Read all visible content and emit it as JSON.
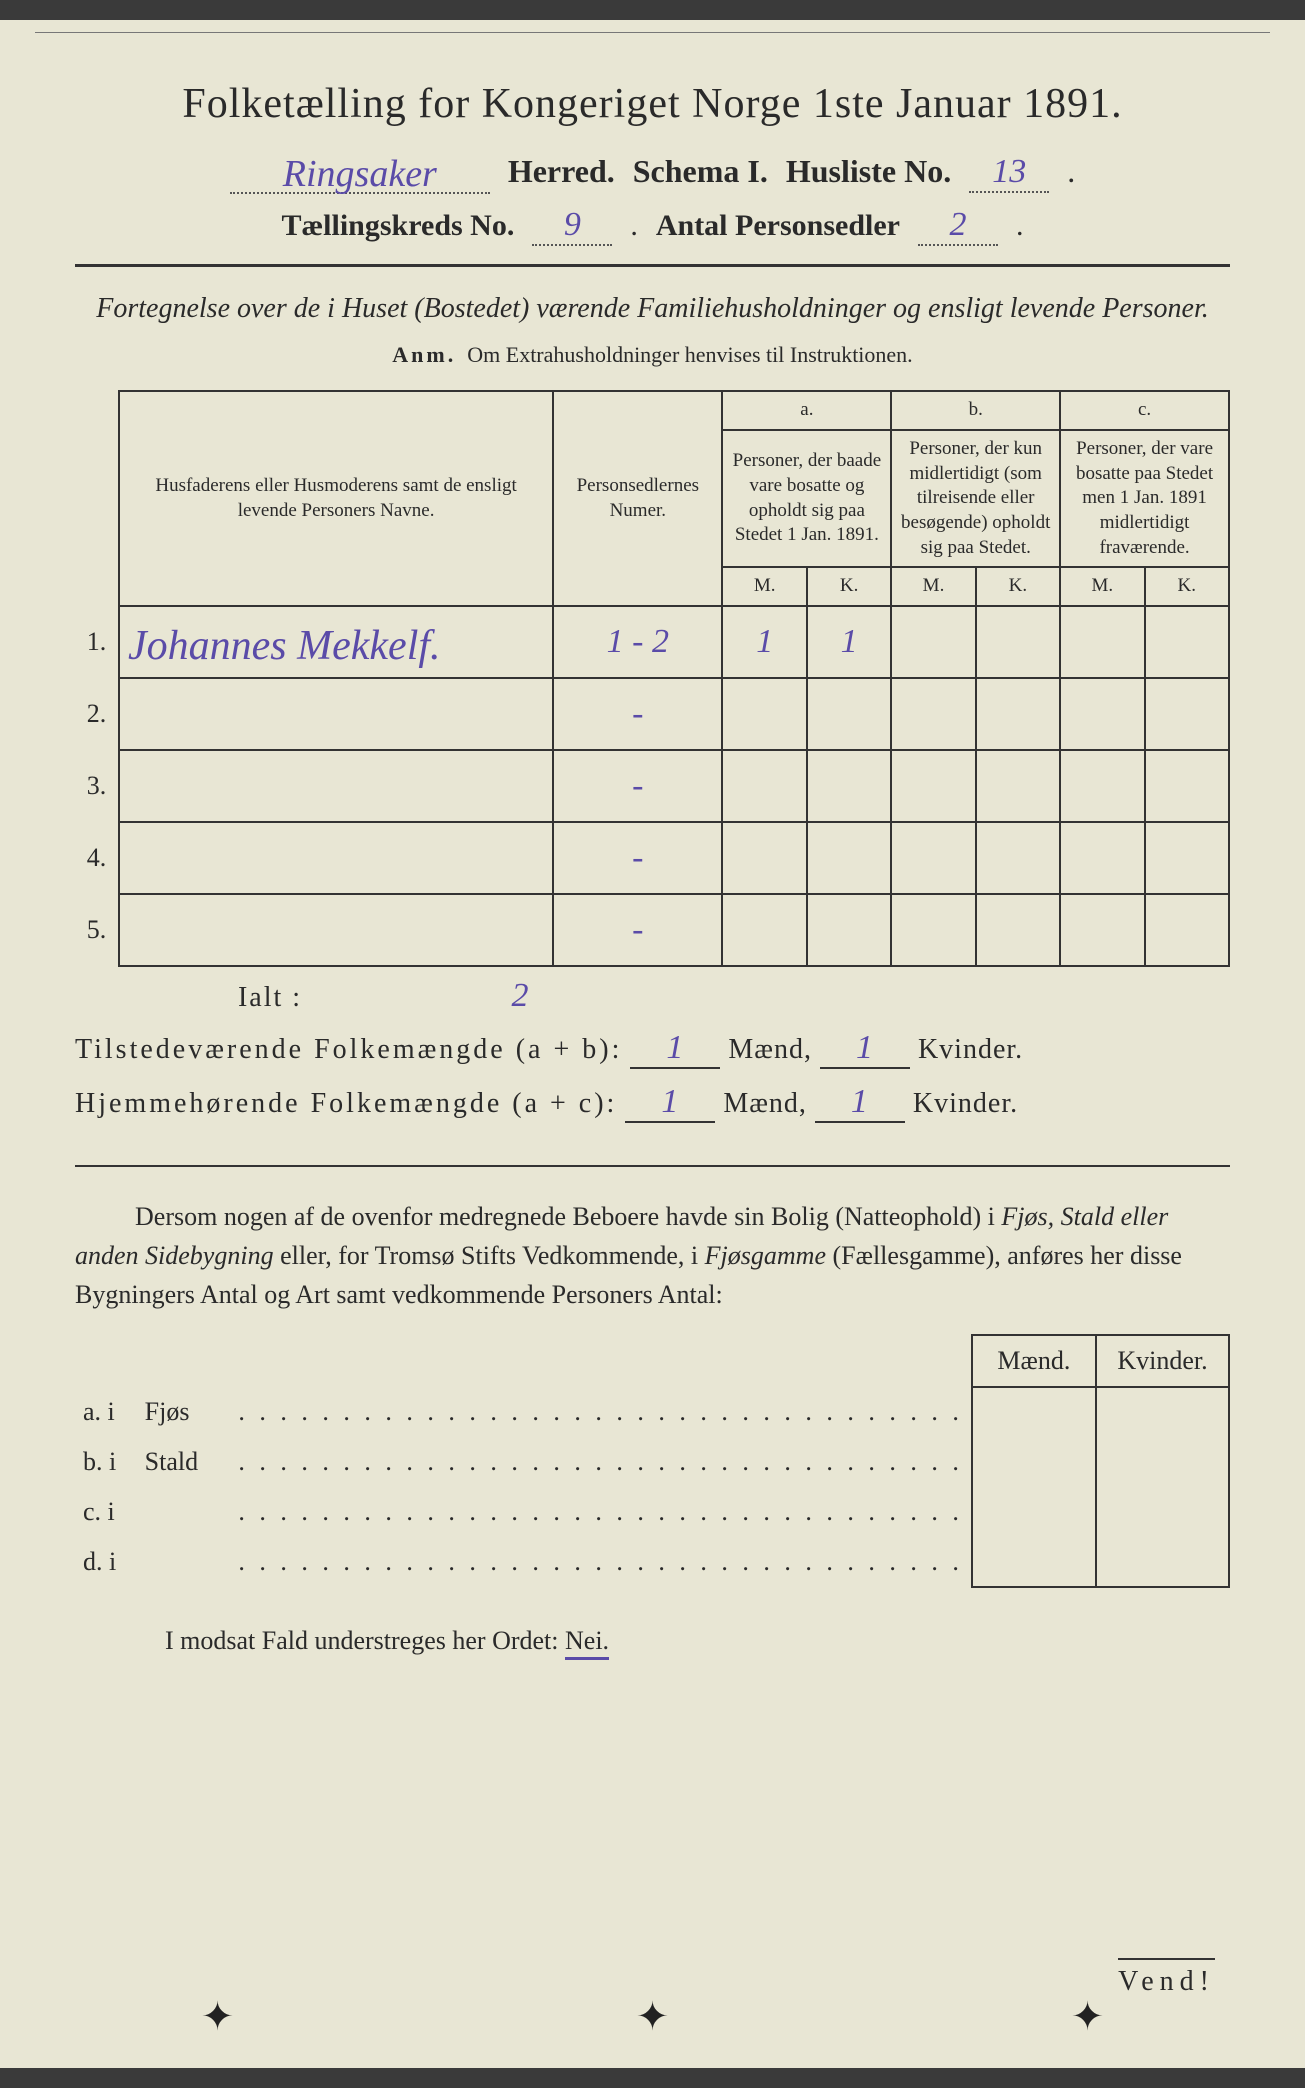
{
  "title": "Folketælling for Kongeriget Norge 1ste Januar 1891.",
  "header": {
    "herred_value": "Ringsaker",
    "herred_label": "Herred.",
    "schema_label": "Schema I.",
    "husliste_label": "Husliste No.",
    "husliste_value": "13",
    "kred_label": "Tællingskreds No.",
    "kred_value": "9",
    "antal_label": "Antal Personsedler",
    "antal_value": "2"
  },
  "subtitle": "Fortegnelse over de i Huset (Bostedet) værende Familiehusholdninger og ensligt levende Personer.",
  "anm_label": "Anm.",
  "anm_text": "Om Extrahusholdninger henvises til Instruktionen.",
  "table": {
    "col_names": "Husfaderens eller Husmoderens samt de ensligt levende Personers Navne.",
    "col_numer": "Personsedlernes Numer.",
    "group_a": "a.",
    "group_a_text": "Personer, der baade vare bosatte og opholdt sig paa Stedet 1 Jan. 1891.",
    "group_b": "b.",
    "group_b_text": "Personer, der kun midlertidigt (som tilreisende eller besøgende) opholdt sig paa Stedet.",
    "group_c": "c.",
    "group_c_text": "Personer, der vare bosatte paa Stedet men 1 Jan. 1891 midlertidigt fraværende.",
    "m": "M.",
    "k": "K.",
    "rows": [
      {
        "n": "1.",
        "name": "Johannes Mekkelf.",
        "numer": "1 - 2",
        "am": "1",
        "ak": "1",
        "bm": "",
        "bk": "",
        "cm": "",
        "ck": ""
      },
      {
        "n": "2.",
        "name": "",
        "numer": "-",
        "am": "",
        "ak": "",
        "bm": "",
        "bk": "",
        "cm": "",
        "ck": ""
      },
      {
        "n": "3.",
        "name": "",
        "numer": "-",
        "am": "",
        "ak": "",
        "bm": "",
        "bk": "",
        "cm": "",
        "ck": ""
      },
      {
        "n": "4.",
        "name": "",
        "numer": "-",
        "am": "",
        "ak": "",
        "bm": "",
        "bk": "",
        "cm": "",
        "ck": ""
      },
      {
        "n": "5.",
        "name": "",
        "numer": "-",
        "am": "",
        "ak": "",
        "bm": "",
        "bk": "",
        "cm": "",
        "ck": ""
      }
    ],
    "ialt_label": "Ialt :",
    "ialt_value": "2"
  },
  "summary": {
    "line1_label": "Tilstedeværende Folkemængde (a + b):",
    "line2_label": "Hjemmehørende Folkemængde (a + c):",
    "maend": "Mænd,",
    "kvinder": "Kvinder.",
    "v1m": "1",
    "v1k": "1",
    "v2m": "1",
    "v2k": "1"
  },
  "para_text_1": "Dersom nogen af de ovenfor medregnede Beboere havde sin Bolig (Natteophold) i ",
  "para_italic_1": "Fjøs, Stald eller anden Sidebygning",
  "para_text_2": " eller, for Tromsø Stifts Vedkommende, i ",
  "para_italic_2": "Fjøsgamme",
  "para_text_3": " (Fællesgamme), anføres her disse Bygningers Antal og Art samt vedkommende Personers Antal:",
  "mk": {
    "maend": "Mænd.",
    "kvinder": "Kvinder.",
    "rows": [
      {
        "lbl": "a.  i",
        "bld": "Fjøs"
      },
      {
        "lbl": "b.  i",
        "bld": "Stald"
      },
      {
        "lbl": "c.  i",
        "bld": ""
      },
      {
        "lbl": "d.  i",
        "bld": ""
      }
    ]
  },
  "modsat": "I modsat Fald understreges her Ordet: ",
  "nei": "Nei.",
  "vend": "Vend!",
  "colors": {
    "paper": "#e8e6d4",
    "ink": "#2a2a2a",
    "handwriting": "#5a4ba8"
  }
}
